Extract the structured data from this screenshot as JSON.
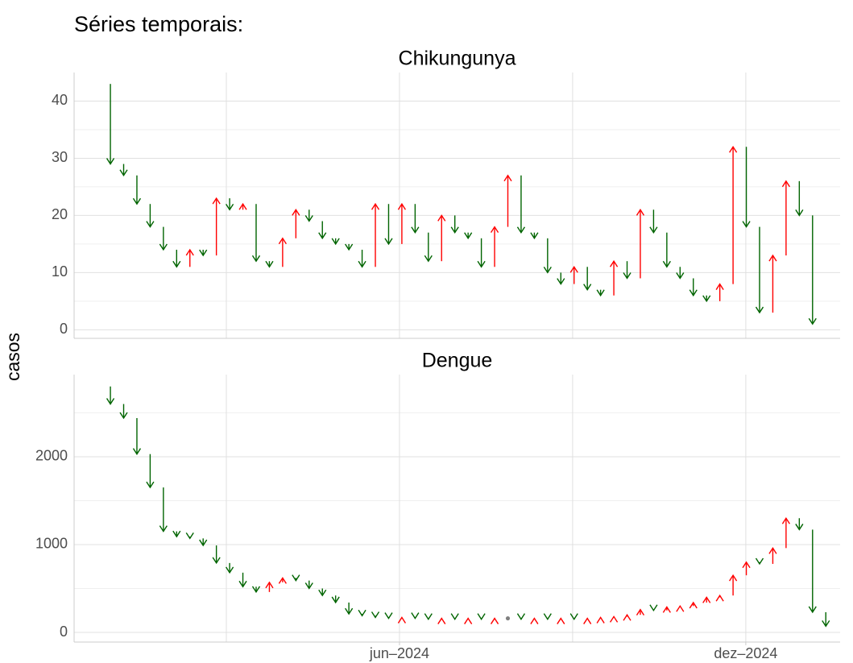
{
  "title": "Séries temporais:",
  "y_label": "casos",
  "chart_data": [
    {
      "type": "arrow",
      "title": "Chikungunya",
      "values": [
        43,
        29,
        27,
        22,
        18,
        14,
        11,
        14,
        13,
        23,
        21,
        22,
        12,
        11,
        16,
        21,
        19,
        16,
        15,
        14,
        11,
        22,
        15,
        22,
        17,
        12,
        20,
        17,
        16,
        11,
        18,
        27,
        17,
        16,
        10,
        8,
        11,
        7,
        6,
        12,
        9,
        21,
        17,
        11,
        9,
        6,
        5,
        8,
        32,
        18,
        3,
        13,
        26,
        20,
        1
      ],
      "ylim": [
        -1.5,
        45
      ],
      "yticks": [
        0,
        10,
        20,
        30,
        40
      ],
      "xlim": [
        -1.74,
        56.08
      ],
      "xgrid": [
        9.75,
        22.82,
        35.89,
        48.96
      ],
      "xticks": [],
      "colors": {
        "up": "#ff0000",
        "down": "#006400",
        "equal": "#808080"
      },
      "grid": true
    },
    {
      "type": "arrow",
      "title": "Dengue",
      "values": [
        2800,
        2600,
        2440,
        2030,
        1650,
        1150,
        1090,
        1070,
        990,
        790,
        680,
        520,
        460,
        570,
        620,
        590,
        500,
        420,
        340,
        210,
        190,
        170,
        160,
        170,
        160,
        150,
        160,
        150,
        160,
        150,
        160,
        160,
        150,
        160,
        150,
        160,
        150,
        160,
        170,
        180,
        200,
        260,
        250,
        290,
        300,
        340,
        400,
        420,
        650,
        800,
        780,
        960,
        1300,
        1170,
        230,
        70
      ],
      "ylim": [
        -110,
        2935
      ],
      "yticks": [
        0,
        1000,
        2000
      ],
      "xlim": [
        -1.74,
        56.08
      ],
      "xgrid": [
        9.75,
        22.82,
        35.89,
        48.96
      ],
      "xticks": [
        {
          "value": 22.82,
          "label": "jun–2024"
        },
        {
          "value": 48.96,
          "label": "dez–2024"
        }
      ],
      "colors": {
        "up": "#ff0000",
        "down": "#006400",
        "equal": "#808080"
      },
      "grid": true
    }
  ]
}
